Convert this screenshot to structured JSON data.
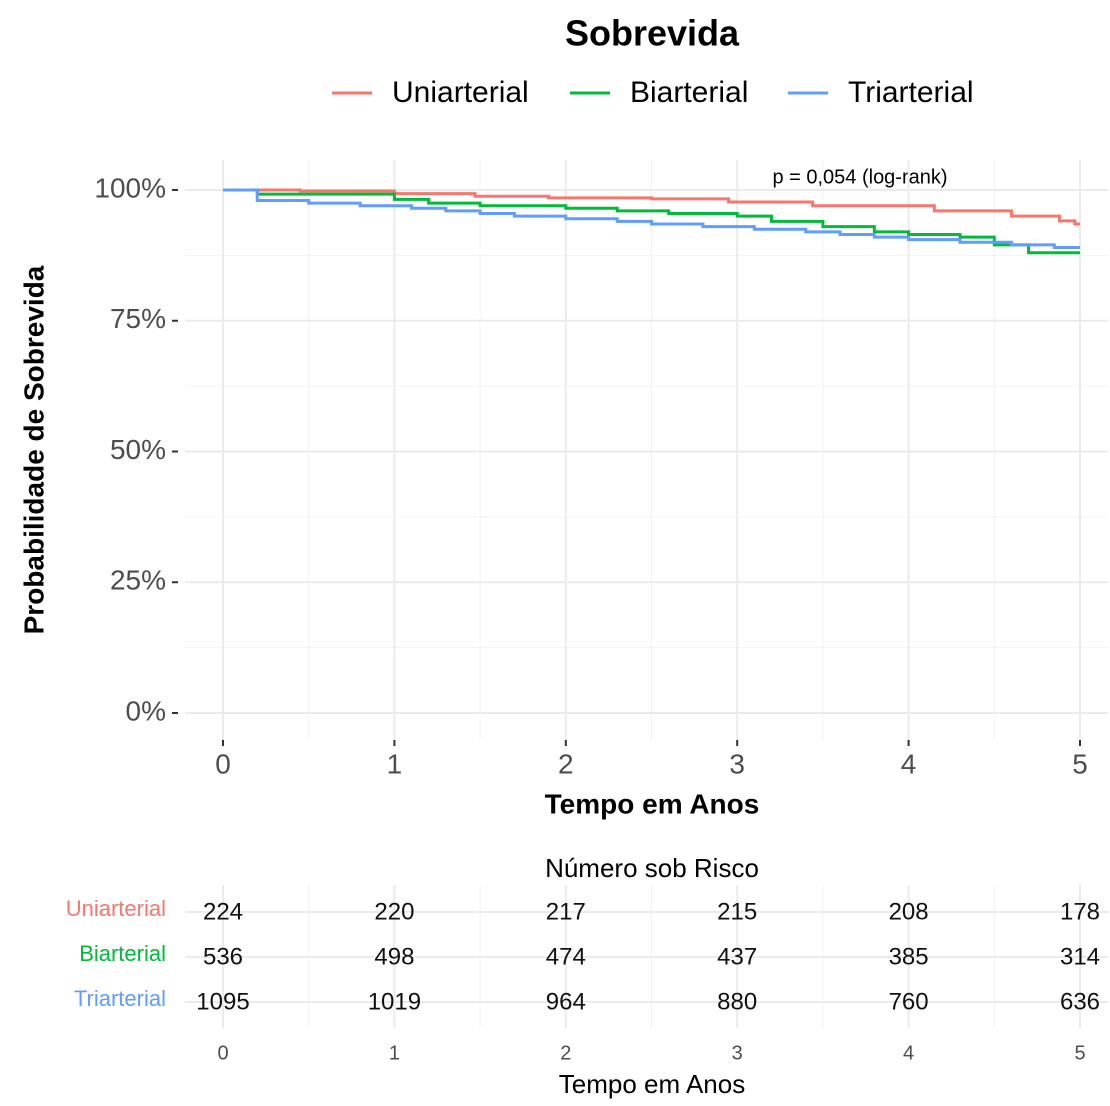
{
  "chart_data": {
    "type": "step",
    "title": "Sobrevida",
    "xlabel": "Tempo em Anos",
    "ylabel": "Probabilidade de Sobrevida",
    "annotation": "p = 0,054 (log-rank)",
    "xlim": [
      0,
      5
    ],
    "xticks": [
      0,
      1,
      2,
      3,
      4,
      5
    ],
    "ylim": [
      0,
      100
    ],
    "yticks": [
      {
        "value": 0,
        "label": "0%"
      },
      {
        "value": 25,
        "label": "25%"
      },
      {
        "value": 50,
        "label": "50%"
      },
      {
        "value": 75,
        "label": "75%"
      },
      {
        "value": 100,
        "label": "100%"
      }
    ],
    "grid": true,
    "series": [
      {
        "name": "Uniarterial",
        "color": "#f8766d",
        "x": [
          0,
          0.45,
          1.0,
          1.47,
          1.9,
          2.5,
          2.95,
          3.44,
          4.15,
          4.6,
          4.88,
          4.97,
          5
        ],
        "values": [
          100,
          99.8,
          99.3,
          98.8,
          98.5,
          98.3,
          97.7,
          97.0,
          96.0,
          95.0,
          94.1,
          93.5,
          93.5
        ]
      },
      {
        "name": "Biarterial",
        "color": "#00ba38",
        "x": [
          0,
          0.2,
          1.0,
          1.2,
          1.5,
          2.0,
          2.3,
          2.6,
          3.0,
          3.2,
          3.5,
          3.8,
          4.0,
          4.3,
          4.5,
          4.7,
          5
        ],
        "values": [
          100,
          99.2,
          98.2,
          97.5,
          97.0,
          96.5,
          96.0,
          95.5,
          95.0,
          94.0,
          93.0,
          92.0,
          91.5,
          91.0,
          89.5,
          88.0,
          88.0
        ]
      },
      {
        "name": "Triarterial",
        "color": "#619cff",
        "x": [
          0,
          0.2,
          0.5,
          0.8,
          1.1,
          1.3,
          1.5,
          1.7,
          2.0,
          2.3,
          2.5,
          2.8,
          3.1,
          3.4,
          3.6,
          3.8,
          4.0,
          4.3,
          4.6,
          4.85,
          5
        ],
        "values": [
          100,
          98.0,
          97.5,
          97.0,
          96.5,
          96.0,
          95.5,
          95.0,
          94.5,
          94.0,
          93.5,
          93.0,
          92.5,
          92.0,
          91.5,
          91.0,
          90.5,
          90.0,
          89.5,
          89.0,
          89.0
        ]
      }
    ],
    "risk_table": {
      "title": "Número sob Risco",
      "xlabel": "Tempo em Anos",
      "xticks": [
        0,
        1,
        2,
        3,
        4,
        5
      ],
      "rows": [
        {
          "name": "Uniarterial",
          "color": "#f8766d",
          "values": [
            224,
            220,
            217,
            215,
            208,
            178
          ]
        },
        {
          "name": "Biarterial",
          "color": "#00ba38",
          "values": [
            536,
            498,
            474,
            437,
            385,
            314
          ]
        },
        {
          "name": "Triarterial",
          "color": "#619cff",
          "values": [
            1095,
            1019,
            964,
            880,
            760,
            636
          ]
        }
      ]
    }
  }
}
